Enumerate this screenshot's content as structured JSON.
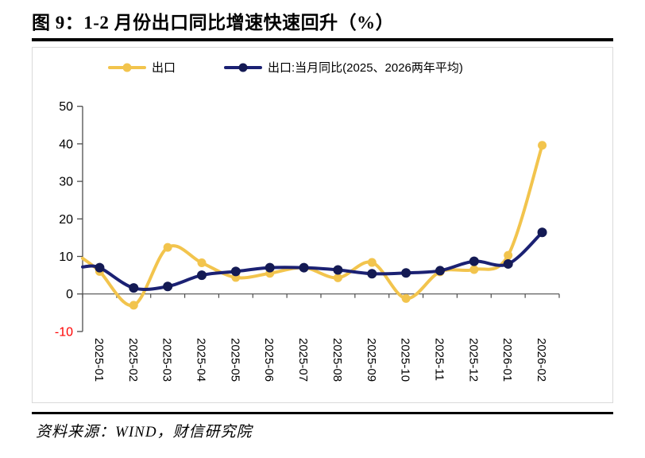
{
  "header": {
    "title": "图 9：1-2 月份出口同比增速快速回升（%）"
  },
  "footer": {
    "source": "资料来源：WIND，财信研究院"
  },
  "chart_data": {
    "type": "line",
    "title": "图 9：1-2 月份出口同比增速快速回升（%）",
    "categories": [
      "2025-01",
      "2025-02",
      "2025-03",
      "2025-04",
      "2025-05",
      "2025-06",
      "2025-07",
      "2025-08",
      "2025-09",
      "2025-10",
      "2025-11",
      "2025-12",
      "2026-01",
      "2026-02"
    ],
    "series": [
      {
        "name": "出口",
        "color": "#F2C44D",
        "marker_color": "#F2C44D",
        "left_edge_entry": 9.5,
        "values": [
          6.0,
          -3.0,
          12.4,
          8.3,
          4.4,
          5.5,
          7.0,
          4.3,
          8.4,
          -1.2,
          5.9,
          6.5,
          10.3,
          39.6
        ]
      },
      {
        "name": "出口:当月同比(2025、2026两年平均)",
        "color": "#1B2173",
        "marker_color": "#141A54",
        "left_edge_entry": 7.2,
        "values": [
          7.0,
          1.6,
          2.0,
          5.0,
          6.0,
          7.0,
          7.0,
          6.4,
          5.4,
          5.6,
          6.2,
          8.7,
          8.0,
          16.4
        ]
      }
    ],
    "ylim": [
      -10,
      50
    ],
    "y_ticks": [
      50,
      40,
      30,
      20,
      10,
      0,
      -10
    ],
    "ylabel": "",
    "xlabel": "",
    "grid": false,
    "legend_position": "top",
    "line_smooth": true,
    "axis_color": "#4D4D4D",
    "negative_tick_color": "#FF0000"
  }
}
